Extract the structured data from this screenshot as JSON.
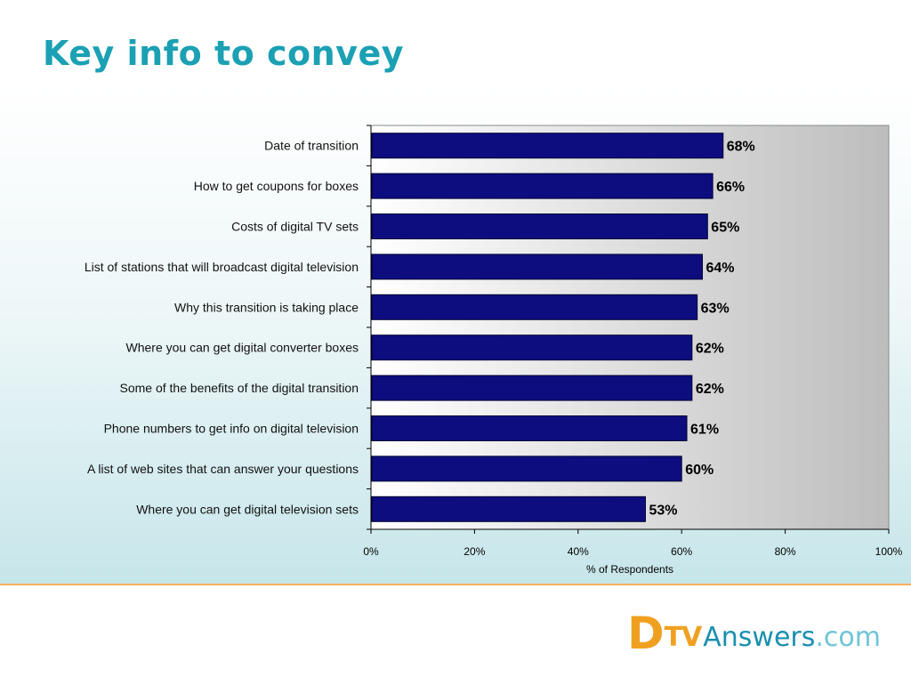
{
  "slide": {
    "title": "Key info to convey"
  },
  "logo": {
    "d": "D",
    "tv": "TV",
    "answers": "Answers",
    "com": ".com"
  },
  "chart_data": {
    "type": "bar",
    "orientation": "horizontal",
    "title": "",
    "xlabel": "% of Respondents",
    "ylabel": "",
    "xlim": [
      0,
      100
    ],
    "x_ticks": [
      0,
      20,
      40,
      60,
      80,
      100
    ],
    "x_tick_labels": [
      "0%",
      "20%",
      "40%",
      "60%",
      "80%",
      "100%"
    ],
    "grid": false,
    "legend": "none",
    "categories": [
      "Date of transition",
      "How to get coupons for boxes",
      "Costs of digital TV sets",
      "List of stations that will broadcast digital television",
      "Why this transition is taking place",
      "Where you can get digital converter boxes",
      "Some of the benefits of the digital transition",
      "Phone numbers to get info on digital television",
      "A list of web sites that can answer your questions",
      "Where you can get digital television sets"
    ],
    "values": [
      68,
      66,
      65,
      64,
      63,
      62,
      62,
      61,
      60,
      53
    ],
    "data_labels": [
      "68%",
      "66%",
      "65%",
      "64%",
      "63%",
      "62%",
      "62%",
      "61%",
      "60%",
      "53%"
    ],
    "colors": {
      "bar": "#0d0d80",
      "bar_border": "#000033",
      "plot_bg_start": "#ffffff",
      "plot_bg_end": "#bdbdbd"
    }
  }
}
